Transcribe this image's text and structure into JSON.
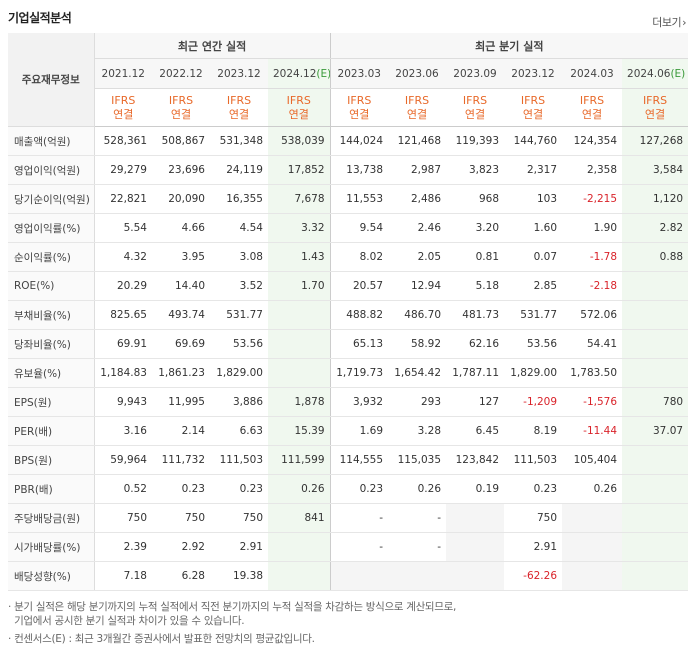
{
  "title": "기업실적분석",
  "more_label": "더보기",
  "header": {
    "label": "주요재무정보",
    "annual_group": "최근 연간 실적",
    "quarter_group": "최근 분기 실적",
    "periods": [
      "2021.12",
      "2022.12",
      "2023.12",
      "2024.12(E)",
      "2023.03",
      "2023.06",
      "2023.09",
      "2023.12",
      "2024.03",
      "2024.06(E)"
    ],
    "ifrs_top": "IFRS",
    "ifrs_bottom": "연결"
  },
  "rows": [
    {
      "label": "매출액(억원)",
      "values": [
        "528,361",
        "508,867",
        "531,348",
        "538,039",
        "144,024",
        "121,468",
        "119,393",
        "144,760",
        "124,354",
        "127,268"
      ]
    },
    {
      "label": "영업이익(억원)",
      "values": [
        "29,279",
        "23,696",
        "24,119",
        "17,852",
        "13,738",
        "2,987",
        "3,823",
        "2,317",
        "2,358",
        "3,584"
      ]
    },
    {
      "label": "당기순이익(억원)",
      "values": [
        "22,821",
        "20,090",
        "16,355",
        "7,678",
        "11,553",
        "2,486",
        "968",
        "103",
        "-2,215",
        "1,120"
      ]
    },
    {
      "label": "영업이익률(%)",
      "values": [
        "5.54",
        "4.66",
        "4.54",
        "3.32",
        "9.54",
        "2.46",
        "3.20",
        "1.60",
        "1.90",
        "2.82"
      ]
    },
    {
      "label": "순이익률(%)",
      "values": [
        "4.32",
        "3.95",
        "3.08",
        "1.43",
        "8.02",
        "2.05",
        "0.81",
        "0.07",
        "-1.78",
        "0.88"
      ]
    },
    {
      "label": "ROE(%)",
      "values": [
        "20.29",
        "14.40",
        "3.52",
        "1.70",
        "20.57",
        "12.94",
        "5.18",
        "2.85",
        "-2.18",
        ""
      ]
    },
    {
      "label": "부채비율(%)",
      "values": [
        "825.65",
        "493.74",
        "531.77",
        "",
        "488.82",
        "486.70",
        "481.73",
        "531.77",
        "572.06",
        ""
      ]
    },
    {
      "label": "당좌비율(%)",
      "values": [
        "69.91",
        "69.69",
        "53.56",
        "",
        "65.13",
        "58.92",
        "62.16",
        "53.56",
        "54.41",
        ""
      ]
    },
    {
      "label": "유보율(%)",
      "values": [
        "1,184.83",
        "1,861.23",
        "1,829.00",
        "",
        "1,719.73",
        "1,654.42",
        "1,787.11",
        "1,829.00",
        "1,783.50",
        ""
      ]
    },
    {
      "label": "EPS(원)",
      "values": [
        "9,943",
        "11,995",
        "3,886",
        "1,878",
        "3,932",
        "293",
        "127",
        "-1,209",
        "-1,576",
        "780"
      ]
    },
    {
      "label": "PER(배)",
      "values": [
        "3.16",
        "2.14",
        "6.63",
        "15.39",
        "1.69",
        "3.28",
        "6.45",
        "8.19",
        "-11.44",
        "37.07"
      ]
    },
    {
      "label": "BPS(원)",
      "values": [
        "59,964",
        "111,732",
        "111,503",
        "111,599",
        "114,555",
        "115,035",
        "123,842",
        "111,503",
        "105,404",
        ""
      ]
    },
    {
      "label": "PBR(배)",
      "values": [
        "0.52",
        "0.23",
        "0.23",
        "0.26",
        "0.23",
        "0.26",
        "0.19",
        "0.23",
        "0.26",
        ""
      ]
    },
    {
      "label": "주당배당금(원)",
      "values": [
        "750",
        "750",
        "750",
        "841",
        "-",
        "-",
        "",
        "750",
        "",
        ""
      ]
    },
    {
      "label": "시가배당률(%)",
      "values": [
        "2.39",
        "2.92",
        "2.91",
        "",
        "-",
        "-",
        "",
        "2.91",
        "",
        ""
      ]
    },
    {
      "label": "배당성향(%)",
      "values": [
        "7.18",
        "6.28",
        "19.38",
        "",
        "",
        "",
        "",
        "-62.26",
        "",
        ""
      ]
    }
  ],
  "notes": [
    "· 분기 실적은 해당 분기까지의 누적 실적에서 직전 분기까지의 누적 실적을 차감하는 방식으로 계산되므로,",
    "  기업에서 공시한 분기 실적과 차이가 있을 수 있습니다.",
    "· 컨센서스(E) : 최근 3개월간 증권사에서 발표한 전망치의 평균값입니다."
  ],
  "colors": {
    "ifrs": "#e8692a",
    "negative": "#d9232a",
    "estimate_bg": "#f0f8ef"
  }
}
